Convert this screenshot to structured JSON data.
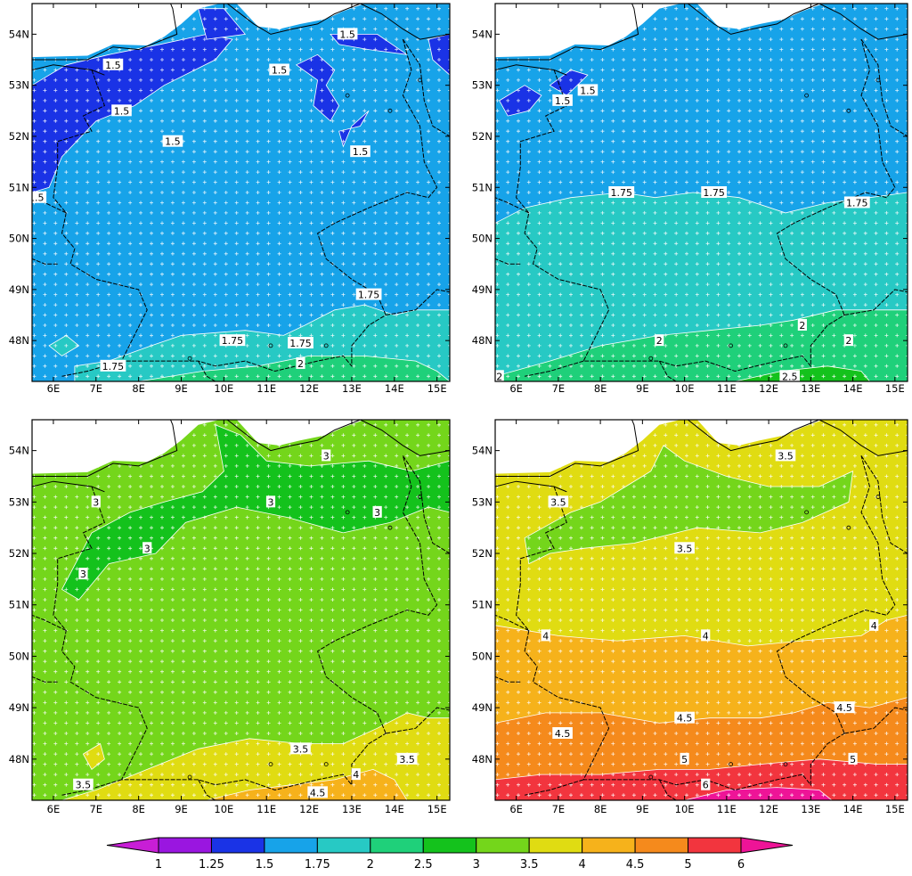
{
  "axes": {
    "lat_ticks": [
      "54N",
      "53N",
      "52N",
      "51N",
      "50N",
      "49N",
      "48N"
    ],
    "lon_ticks": [
      "6E",
      "7E",
      "8E",
      "9E",
      "10E",
      "11E",
      "12E",
      "13E",
      "14E",
      "15E"
    ]
  },
  "panels": [
    {
      "id": "top-left",
      "base_color": "#17a3e9",
      "regions": [
        {
          "value": "1.25",
          "color": "#1a33e6"
        },
        {
          "value": "1.75",
          "color": "#27c9c4"
        },
        {
          "value": "2",
          "color": "#1fd07a"
        }
      ],
      "contour_labels": [
        "1.5",
        "1.5",
        "1.5",
        "1.5",
        "1.5",
        "1.5",
        "1.5",
        "1.75",
        "1.75",
        "1.75",
        "1.75",
        "2"
      ]
    },
    {
      "id": "top-right",
      "base_color": "#17a3e9",
      "regions": [
        {
          "value": "1.25",
          "color": "#1a33e6"
        },
        {
          "value": "1.75",
          "color": "#27c9c4"
        },
        {
          "value": "2",
          "color": "#1fd07a"
        },
        {
          "value": "2.5",
          "color": "#14c21c"
        }
      ],
      "contour_labels": [
        "1.5",
        "1.5",
        "1.75",
        "1.75",
        "1.75",
        "2",
        "2",
        "2",
        "2",
        "2.5"
      ]
    },
    {
      "id": "bottom-left",
      "base_color": "#74d61b",
      "regions": [
        {
          "value": "2.5",
          "color": "#14c21c"
        },
        {
          "value": "3.5",
          "color": "#e0dc12"
        },
        {
          "value": "4",
          "color": "#f6b21b"
        }
      ],
      "contour_labels": [
        "3",
        "3",
        "3",
        "3",
        "3",
        "3",
        "3.5",
        "3.5",
        "3.5",
        "4",
        "4.5"
      ]
    },
    {
      "id": "bottom-right",
      "base_color": "#e0dc12",
      "regions": [
        {
          "value": "3",
          "color": "#74d61b"
        },
        {
          "value": "4",
          "color": "#f6b21b"
        },
        {
          "value": "4.5",
          "color": "#f58a1c"
        },
        {
          "value": "5",
          "color": "#f2353e"
        },
        {
          "value": "6",
          "color": "#ee1497"
        }
      ],
      "contour_labels": [
        "3.5",
        "3.5",
        "3.5",
        "4",
        "4",
        "4",
        "4.5",
        "4.5",
        "4.5",
        "5",
        "5",
        "6"
      ]
    }
  ],
  "colorbar": {
    "labels": [
      "1",
      "1.25",
      "1.5",
      "1.75",
      "2",
      "2.5",
      "3",
      "3.5",
      "4",
      "4.5",
      "5",
      "6"
    ],
    "colors": [
      "#9a16e0",
      "#1a33e6",
      "#17a3e9",
      "#27c9c4",
      "#1fd07a",
      "#14c21c",
      "#74d61b",
      "#e0dc12",
      "#f6b21b",
      "#f58a1c",
      "#f2353e"
    ],
    "under_color": "#c81ed6",
    "over_color": "#ee1497"
  }
}
